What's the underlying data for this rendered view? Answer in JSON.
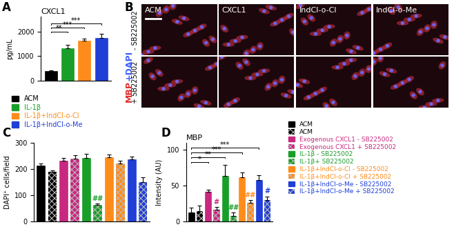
{
  "chart_data": [
    {
      "type": "bar",
      "panel_label": "A",
      "title": "CXCL1",
      "y_label": "pg/mL",
      "categories": [
        "ACM",
        "IL-1β",
        "IL-1β+IndCl-o-Cl",
        "IL-1β+IndCl-o-Me"
      ],
      "values": [
        400,
        1320,
        1630,
        1750
      ],
      "errors": [
        40,
        150,
        90,
        150
      ],
      "colors": [
        "#000000",
        "#1a9e2a",
        "#ff8c1a",
        "#1f3fd6"
      ],
      "ylim": [
        0,
        2600
      ],
      "yticks": [
        0,
        1000,
        2000
      ],
      "tick_labels": "y",
      "legend": "below",
      "annotations": [
        {
          "text": "**",
          "from": 0,
          "to": 1
        },
        {
          "text": "***",
          "from": 0,
          "to": 2
        },
        {
          "text": "***",
          "from": 0,
          "to": 3
        }
      ]
    },
    {
      "type": "bar",
      "panel_label": "C",
      "y_label": "DAPI⁺ cells/field",
      "categories": [
        null,
        null,
        null,
        null,
        null,
        null,
        null,
        null,
        null,
        null
      ],
      "values": [
        213,
        190,
        232,
        240,
        243,
        62,
        245,
        222,
        238,
        150
      ],
      "errors": [
        8,
        5,
        10,
        12,
        15,
        5,
        10,
        10,
        10,
        18
      ],
      "colors": [
        "#000000",
        "#000000",
        "#c8287f",
        "#c8287f",
        "#1a9e2a",
        "#1a9e2a",
        "#ff8c1a",
        "#ff8c1a",
        "#1f3fd6",
        "#1f3fd6"
      ],
      "ylim": [
        0,
        300
      ],
      "yticks": [
        0,
        100,
        200,
        300
      ],
      "tick_labels": "y",
      "annotations": [
        {
          "text": "##",
          "bar": 5,
          "color": "#1a9e2a"
        }
      ]
    },
    {
      "type": "bar",
      "panel_label": "D",
      "title": "MBP",
      "y_label": "Intensity (AU)",
      "categories": [
        "ACM",
        "ACM",
        "Exogenous CXCL1 - SB225002",
        "Exogenous CXCL1 + SB225002",
        "IL-1β - SB225002",
        "IL-1β+ SB225002",
        "IL-1β+IndCl-o-Cl - SB225002",
        "IL-1β+IndCl-o-Cl + SB225002",
        "IL-1β+IndCl-o-Me - SB225002",
        "IL-1β+IndCl-o-Me + SB225002"
      ],
      "values": [
        12,
        14,
        41,
        16,
        64,
        8,
        62,
        26,
        58,
        30
      ],
      "errors": [
        7,
        8,
        3,
        4,
        15,
        4,
        6,
        4,
        7,
        5
      ],
      "colors": [
        "#000000",
        "#000000",
        "#c8287f",
        "#c8287f",
        "#1a9e2a",
        "#1a9e2a",
        "#ff8c1a",
        "#ff8c1a",
        "#1f3fd6",
        "#1f3fd6"
      ],
      "ylim": [
        0,
        110
      ],
      "yticks": [
        0,
        50,
        100
      ],
      "tick_labels": "y",
      "legend": "right",
      "annotations": [
        {
          "text": "*",
          "from": 0,
          "to": 2
        },
        {
          "text": "**",
          "from": 0,
          "to": 4
        },
        {
          "text": "***",
          "from": 0,
          "to": 6
        },
        {
          "text": "***",
          "from": 0,
          "to": 8
        },
        {
          "text": "#",
          "bar": 3,
          "color": "#c8287f"
        },
        {
          "text": "##",
          "bar": 5,
          "color": "#1a9e2a"
        },
        {
          "text": "##",
          "bar": 7,
          "color": "#ff8c1a"
        },
        {
          "text": "#",
          "bar": 9,
          "color": "#1f3fd6"
        }
      ]
    }
  ],
  "image_grid": {
    "panel_label": "B",
    "stain": [
      {
        "text": "MBP",
        "color": "#e03030"
      },
      {
        "text": "+DAPI",
        "color": "#4060ff"
      }
    ],
    "columns": [
      "ACM",
      "CXCL1",
      "IndCl-o-Cl",
      "IndCl-o-Me"
    ],
    "rows": [
      "- SB225002",
      "+ SB225002"
    ]
  }
}
